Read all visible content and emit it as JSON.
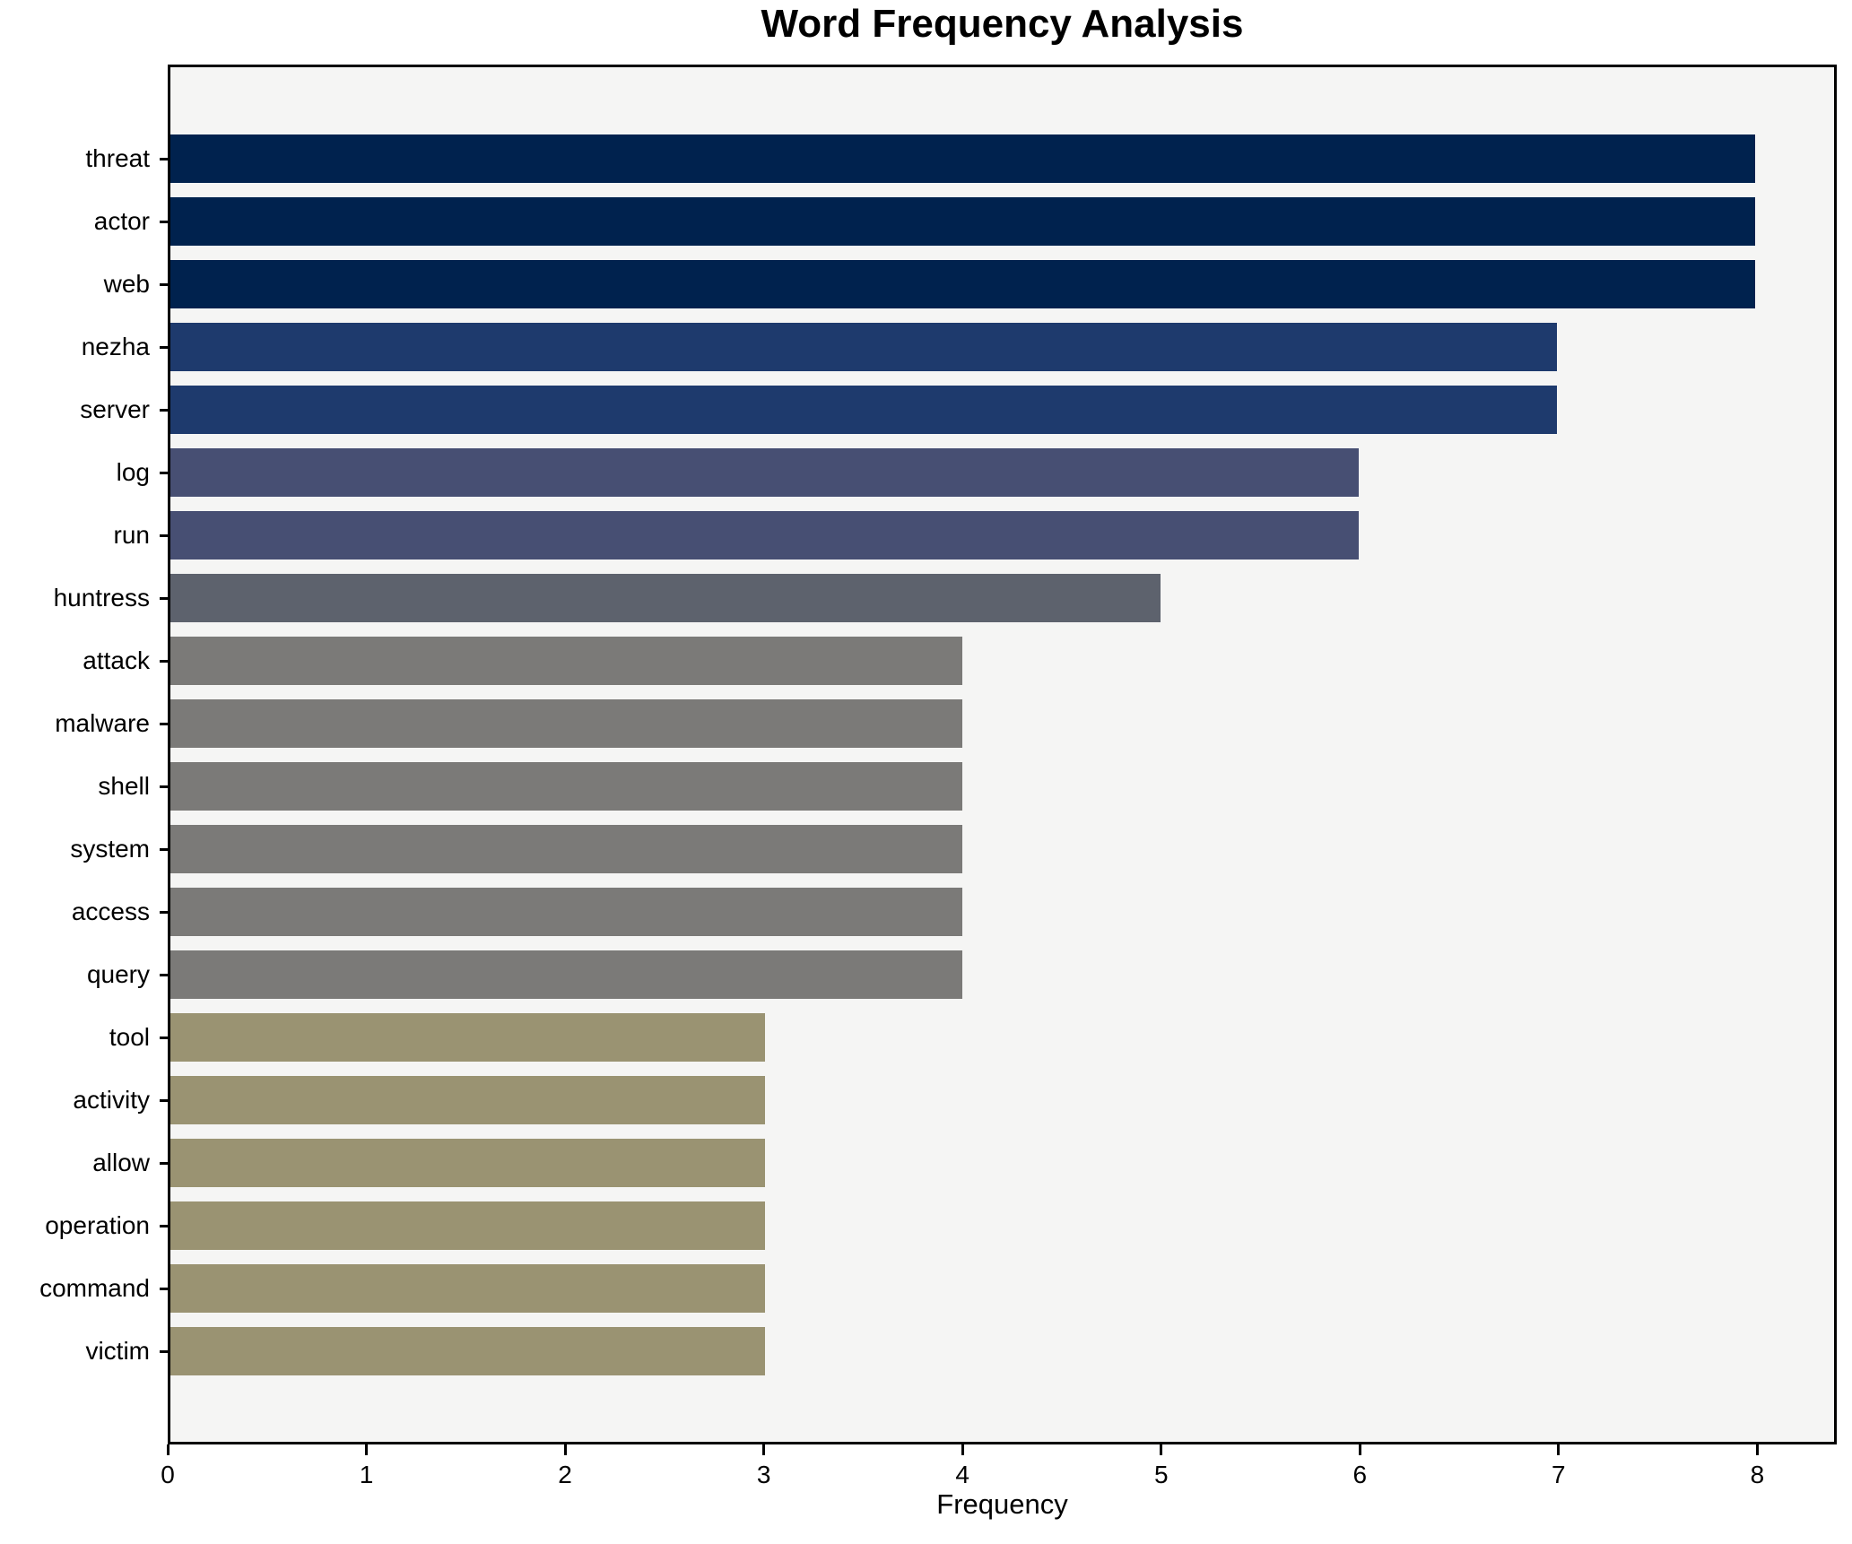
{
  "chart_data": {
    "type": "bar",
    "orientation": "horizontal",
    "title": "Word Frequency Analysis",
    "xlabel": "Frequency",
    "ylabel": "",
    "grid": false,
    "legend": "none",
    "xlim": [
      0,
      8.4
    ],
    "x_ticks": [
      0,
      1,
      2,
      3,
      4,
      5,
      6,
      7,
      8
    ],
    "categories": [
      "threat",
      "actor",
      "web",
      "nezha",
      "server",
      "log",
      "run",
      "huntress",
      "attack",
      "malware",
      "shell",
      "system",
      "access",
      "query",
      "tool",
      "activity",
      "allow",
      "operation",
      "command",
      "victim"
    ],
    "values": [
      8,
      8,
      8,
      7,
      7,
      6,
      6,
      5,
      4,
      4,
      4,
      4,
      4,
      4,
      3,
      3,
      3,
      3,
      3,
      3
    ],
    "bar_colors": [
      "#00224e",
      "#00224e",
      "#00224e",
      "#1e3a6d",
      "#1e3a6d",
      "#474f73",
      "#474f73",
      "#5d626d",
      "#7b7a78",
      "#7b7a78",
      "#7b7a78",
      "#7b7a78",
      "#7b7a78",
      "#7b7a78",
      "#9a9372",
      "#9a9372",
      "#9a9372",
      "#9a9372",
      "#9a9372",
      "#9a9372"
    ],
    "plot_background": "#f5f5f4",
    "figure_background": "#ffffff",
    "spine_color": "#000000",
    "text_color": "#000000"
  }
}
